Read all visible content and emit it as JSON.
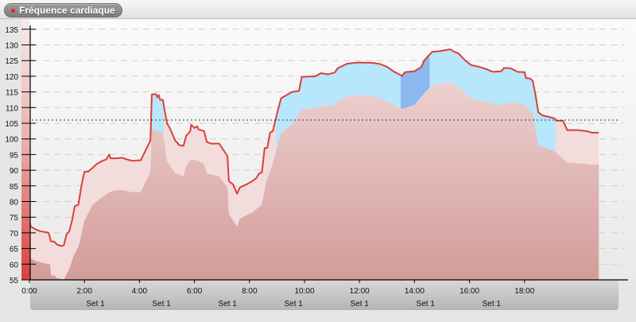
{
  "header": {
    "title": "Fréquence cardiaque",
    "title_dot_color": "#e02a2a"
  },
  "colors": {
    "line": "#d9403a",
    "outer_band": "#f2dcdc",
    "inner_band": "#d9a7a5",
    "above_threshold": "#b8e6fb",
    "highlight_zone": "#8cb8f0",
    "threshold_line": "#333333",
    "gradient_bar_top": "#f7e6e6",
    "gradient_bar_bottom": "#d9403a"
  },
  "chart_data": {
    "type": "area",
    "title": "Fréquence cardiaque",
    "xlabel": "",
    "ylabel": "",
    "ylim": [
      55,
      135
    ],
    "xlim_minutes": [
      0,
      19.6
    ],
    "y_ticks": [
      55,
      60,
      65,
      70,
      75,
      80,
      85,
      90,
      95,
      100,
      105,
      110,
      115,
      120,
      125,
      130,
      135
    ],
    "x_ticks": [
      "0:00",
      "2:00",
      "4:00",
      "6:00",
      "8:00",
      "10:00",
      "12:00",
      "14:00",
      "16:00",
      "18:00"
    ],
    "x_tick_minutes": [
      0,
      2,
      4,
      6,
      8,
      10,
      12,
      14,
      16,
      18
    ],
    "set_labels": [
      {
        "label": "Set 1",
        "minute": 2.4
      },
      {
        "label": "Set 1",
        "minute": 4.8
      },
      {
        "label": "Set 1",
        "minute": 7.2
      },
      {
        "label": "Set 1",
        "minute": 9.6
      },
      {
        "label": "Set 1",
        "minute": 12.0
      },
      {
        "label": "Set 1",
        "minute": 14.4
      },
      {
        "label": "Set 1",
        "minute": 16.8
      }
    ],
    "grid": true,
    "threshold": 106,
    "highlight_range_minutes": [
      13.5,
      14.55
    ],
    "series": [
      {
        "name": "Fréquence cardiaque",
        "points": [
          [
            0.0,
            74
          ],
          [
            0.05,
            72
          ],
          [
            0.25,
            71
          ],
          [
            0.4,
            70.5
          ],
          [
            0.55,
            70.3
          ],
          [
            0.7,
            70
          ],
          [
            0.78,
            67.3
          ],
          [
            0.9,
            67.2
          ],
          [
            1.0,
            66.3
          ],
          [
            1.15,
            65.8
          ],
          [
            1.25,
            66
          ],
          [
            1.35,
            69.5
          ],
          [
            1.45,
            70.5
          ],
          [
            1.55,
            74
          ],
          [
            1.65,
            78.5
          ],
          [
            1.78,
            79
          ],
          [
            1.9,
            85.5
          ],
          [
            2.0,
            89.5
          ],
          [
            2.15,
            89.6
          ],
          [
            2.3,
            90.8
          ],
          [
            2.45,
            92
          ],
          [
            2.65,
            93
          ],
          [
            2.8,
            93.5
          ],
          [
            2.9,
            95
          ],
          [
            2.95,
            93.8
          ],
          [
            3.2,
            93.8
          ],
          [
            3.35,
            94
          ],
          [
            3.6,
            93.3
          ],
          [
            3.75,
            93
          ],
          [
            4.05,
            93.2
          ],
          [
            4.4,
            99.5
          ],
          [
            4.45,
            114.2
          ],
          [
            4.6,
            114.3
          ],
          [
            4.65,
            113.3
          ],
          [
            4.7,
            114
          ],
          [
            4.75,
            112.5
          ],
          [
            4.85,
            112.5
          ],
          [
            5.0,
            105
          ],
          [
            5.1,
            103.5
          ],
          [
            5.3,
            99.5
          ],
          [
            5.45,
            98
          ],
          [
            5.6,
            97.8
          ],
          [
            5.7,
            101
          ],
          [
            5.85,
            102.5
          ],
          [
            5.88,
            104.5
          ],
          [
            6.0,
            103.5
          ],
          [
            6.1,
            104
          ],
          [
            6.15,
            103
          ],
          [
            6.35,
            102.5
          ],
          [
            6.45,
            99
          ],
          [
            6.6,
            98.5
          ],
          [
            6.9,
            98.5
          ],
          [
            7.2,
            94.5
          ],
          [
            7.25,
            86.5
          ],
          [
            7.4,
            85.5
          ],
          [
            7.55,
            82.5
          ],
          [
            7.65,
            84.5
          ],
          [
            7.9,
            85.5
          ],
          [
            8.1,
            86.5
          ],
          [
            8.25,
            87.5
          ],
          [
            8.35,
            89
          ],
          [
            8.45,
            89.2
          ],
          [
            8.55,
            97
          ],
          [
            8.65,
            97.2
          ],
          [
            8.75,
            102
          ],
          [
            8.85,
            102.5
          ],
          [
            9.0,
            108
          ],
          [
            9.15,
            113
          ],
          [
            9.35,
            114
          ],
          [
            9.55,
            115
          ],
          [
            9.8,
            115.3
          ],
          [
            9.9,
            119.8
          ],
          [
            10.4,
            120
          ],
          [
            10.6,
            121
          ],
          [
            10.85,
            120.6
          ],
          [
            11.1,
            121.2
          ],
          [
            11.2,
            122.5
          ],
          [
            11.55,
            124
          ],
          [
            11.95,
            124.4
          ],
          [
            12.45,
            124.3
          ],
          [
            12.75,
            123.9
          ],
          [
            13.0,
            123
          ],
          [
            13.25,
            121.5
          ],
          [
            13.55,
            120.1
          ],
          [
            13.65,
            121.3
          ],
          [
            14.0,
            121.6
          ],
          [
            14.25,
            123
          ],
          [
            14.35,
            125
          ],
          [
            14.5,
            126.5
          ],
          [
            14.65,
            127.8
          ],
          [
            14.9,
            128
          ],
          [
            15.3,
            128.6
          ],
          [
            15.45,
            127.8
          ],
          [
            15.6,
            127.3
          ],
          [
            15.85,
            125
          ],
          [
            16.05,
            123.6
          ],
          [
            16.35,
            123
          ],
          [
            16.6,
            122.3
          ],
          [
            16.85,
            121.4
          ],
          [
            17.15,
            121.6
          ],
          [
            17.25,
            122.6
          ],
          [
            17.45,
            122.6
          ],
          [
            17.55,
            122.3
          ],
          [
            17.75,
            121.4
          ],
          [
            18.0,
            121.3
          ],
          [
            18.05,
            119.4
          ],
          [
            18.2,
            119.3
          ],
          [
            18.3,
            118.5
          ],
          [
            18.4,
            114
          ],
          [
            18.5,
            108.5
          ],
          [
            18.65,
            107.5
          ],
          [
            18.9,
            107
          ],
          [
            19.1,
            106.5
          ],
          [
            19.15,
            105.8
          ],
          [
            19.4,
            105.8
          ],
          [
            19.55,
            102.8
          ],
          [
            19.95,
            102.8
          ],
          [
            20.3,
            102.4
          ],
          [
            20.45,
            102
          ],
          [
            20.7,
            102
          ]
        ]
      },
      {
        "name": "inner_band",
        "points": [
          [
            0.0,
            62
          ],
          [
            0.25,
            61
          ],
          [
            0.55,
            60.3
          ],
          [
            0.75,
            60
          ],
          [
            0.78,
            56.5
          ],
          [
            0.9,
            56.4
          ],
          [
            1.0,
            55.6
          ],
          [
            1.15,
            55.3
          ],
          [
            1.25,
            55
          ],
          [
            1.45,
            58.5
          ],
          [
            1.6,
            62.5
          ],
          [
            1.8,
            66
          ],
          [
            2.0,
            73.8
          ],
          [
            2.3,
            79
          ],
          [
            2.6,
            81
          ],
          [
            2.9,
            83
          ],
          [
            3.1,
            83.5
          ],
          [
            3.3,
            83.8
          ],
          [
            3.7,
            83
          ],
          [
            4.05,
            83
          ],
          [
            4.4,
            89.5
          ],
          [
            4.45,
            103
          ],
          [
            4.85,
            102
          ],
          [
            5.0,
            93
          ],
          [
            5.3,
            89
          ],
          [
            5.6,
            88
          ],
          [
            5.7,
            91.5
          ],
          [
            5.88,
            93.5
          ],
          [
            6.1,
            93
          ],
          [
            6.35,
            92
          ],
          [
            6.45,
            89
          ],
          [
            6.9,
            88
          ],
          [
            7.2,
            84.5
          ],
          [
            7.25,
            76
          ],
          [
            7.55,
            72
          ],
          [
            7.65,
            74.5
          ],
          [
            8.1,
            76.5
          ],
          [
            8.45,
            79
          ],
          [
            8.6,
            86
          ],
          [
            8.85,
            92.2
          ],
          [
            9.0,
            97
          ],
          [
            9.15,
            102
          ],
          [
            9.55,
            104.5
          ],
          [
            9.9,
            109.5
          ],
          [
            10.4,
            109.8
          ],
          [
            10.6,
            110.5
          ],
          [
            11.1,
            110.8
          ],
          [
            11.2,
            112
          ],
          [
            11.55,
            113.5
          ],
          [
            12.0,
            114
          ],
          [
            12.5,
            113.7
          ],
          [
            13.0,
            112
          ],
          [
            13.55,
            109.5
          ],
          [
            14.0,
            110.8
          ],
          [
            14.35,
            114.5
          ],
          [
            14.65,
            117.2
          ],
          [
            15.3,
            118
          ],
          [
            15.6,
            116.5
          ],
          [
            16.05,
            113
          ],
          [
            16.6,
            111.8
          ],
          [
            17.15,
            110.8
          ],
          [
            17.55,
            111.8
          ],
          [
            18.0,
            110.8
          ],
          [
            18.3,
            108
          ],
          [
            18.5,
            98
          ],
          [
            19.1,
            96
          ],
          [
            19.55,
            92.5
          ],
          [
            20.45,
            91.8
          ],
          [
            20.7,
            91.8
          ]
        ]
      }
    ]
  }
}
